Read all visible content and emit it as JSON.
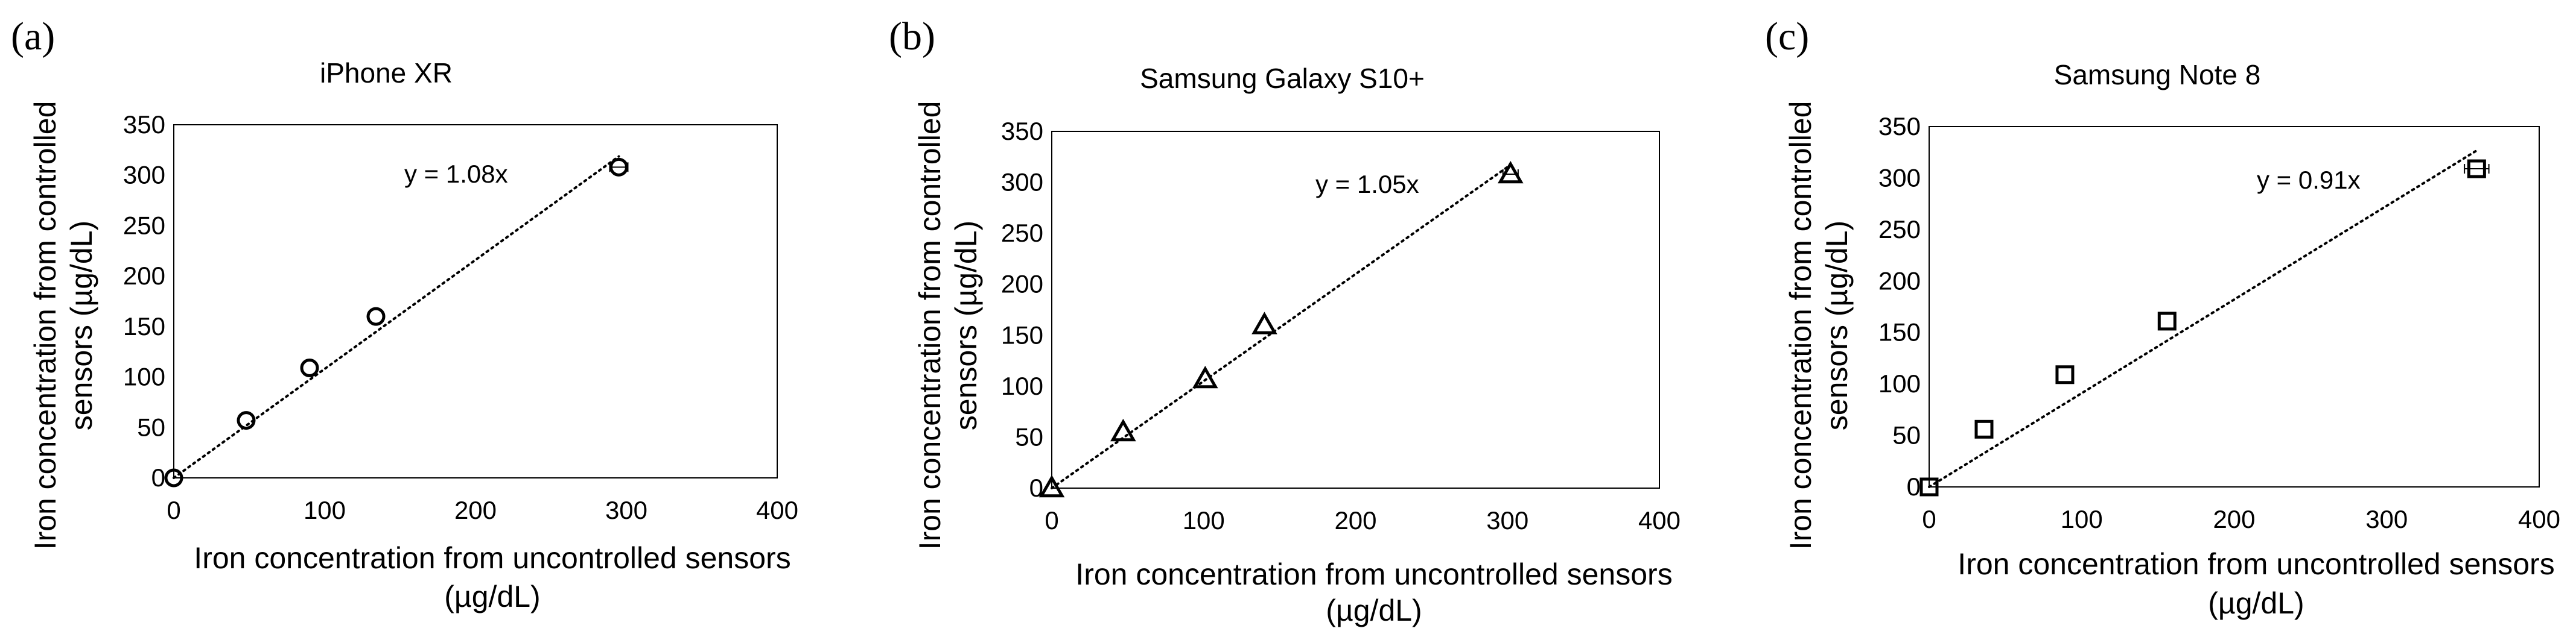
{
  "chart_data": [
    {
      "panel_label": "(a)",
      "type": "scatter",
      "title": "iPhone XR",
      "xlabel": [
        "Iron concentration from uncontrolled sensors",
        "(µg/dL)"
      ],
      "ylabel": [
        "Iron concentration from controlled",
        "sensors (µg/dL)"
      ],
      "xlim": [
        0,
        400
      ],
      "ylim": [
        0,
        350
      ],
      "xticks": [
        "0",
        "100",
        "200",
        "300",
        "400"
      ],
      "yticks": [
        "0",
        "50",
        "100",
        "150",
        "200",
        "250",
        "300",
        "350"
      ],
      "marker": "circle",
      "grid": false,
      "legend": "none",
      "annotation": "y = 1.08x",
      "trendline": {
        "type": "linear-through-origin",
        "slope": 1.08,
        "style": "dotted"
      },
      "points": [
        {
          "x": 0,
          "y": 0
        },
        {
          "x": 48,
          "y": 57
        },
        {
          "x": 90,
          "y": 109
        },
        {
          "x": 134,
          "y": 160
        },
        {
          "x": 295,
          "y": 308,
          "x_error": 6
        }
      ]
    },
    {
      "panel_label": "(b)",
      "type": "scatter",
      "title": "Samsung Galaxy S10+",
      "xlabel": [
        "Iron concentration from uncontrolled sensors",
        "(µg/dL)"
      ],
      "ylabel": [
        "Iron concentration from controlled",
        "sensors (µg/dL)"
      ],
      "xlim": [
        0,
        400
      ],
      "ylim": [
        0,
        350
      ],
      "xticks": [
        "0",
        "100",
        "200",
        "300",
        "400"
      ],
      "yticks": [
        "0",
        "50",
        "100",
        "150",
        "200",
        "250",
        "300",
        "350"
      ],
      "marker": "triangle",
      "grid": false,
      "legend": "none",
      "annotation": "y = 1.05x",
      "trendline": {
        "type": "linear-through-origin",
        "slope": 1.05,
        "style": "dotted"
      },
      "points": [
        {
          "x": 0,
          "y": 0
        },
        {
          "x": 47,
          "y": 55
        },
        {
          "x": 101,
          "y": 107
        },
        {
          "x": 140,
          "y": 160
        },
        {
          "x": 302,
          "y": 308,
          "x_error": 5
        }
      ]
    },
    {
      "panel_label": "(c)",
      "type": "scatter",
      "title": "Samsung Note 8",
      "xlabel": [
        "Iron concentration from uncontrolled sensors",
        "(µg/dL)"
      ],
      "ylabel": [
        "Iron concentration from controlled",
        "sensors (µg/dL)"
      ],
      "xlim": [
        0,
        400
      ],
      "ylim": [
        0,
        350
      ],
      "xticks": [
        "0",
        "100",
        "200",
        "300",
        "400"
      ],
      "yticks": [
        "0",
        "50",
        "100",
        "150",
        "200",
        "250",
        "300",
        "350"
      ],
      "marker": "square",
      "grid": false,
      "legend": "none",
      "annotation": "y = 0.91x",
      "trendline": {
        "type": "linear-through-origin",
        "slope": 0.91,
        "style": "dotted"
      },
      "points": [
        {
          "x": 0,
          "y": 0
        },
        {
          "x": 36,
          "y": 56
        },
        {
          "x": 89,
          "y": 109
        },
        {
          "x": 156,
          "y": 161
        },
        {
          "x": 359,
          "y": 309,
          "x_error": 8
        }
      ]
    }
  ]
}
